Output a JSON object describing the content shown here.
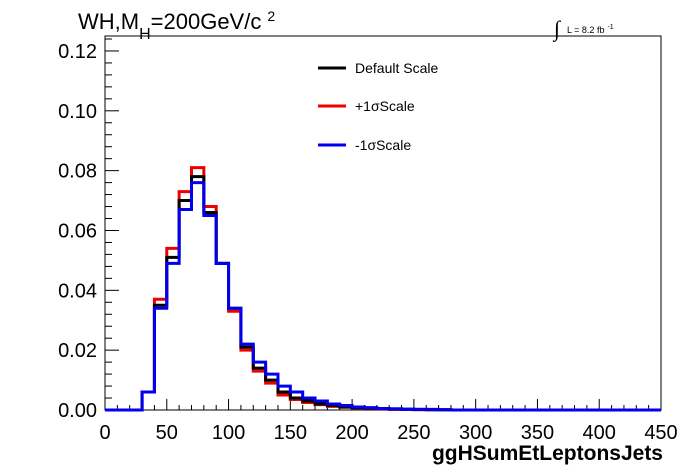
{
  "chart_data": {
    "type": "line",
    "step": true,
    "title_main": "WH,M",
    "title_sub": "H",
    "title_rest": "=200GeV/c",
    "title_sup": "2",
    "lumi_symbol": "∫",
    "lumi_label": "L = 8.2 fb",
    "lumi_sup": "-1",
    "xlabel": "ggHSumEtLeptonsJets",
    "xlim": [
      0,
      450
    ],
    "ylim": [
      0,
      0.125
    ],
    "xticks": [
      "0",
      "50",
      "100",
      "150",
      "200",
      "250",
      "300",
      "350",
      "400",
      "450"
    ],
    "yticks": [
      "0.00",
      "0.02",
      "0.04",
      "0.06",
      "0.08",
      "0.10",
      "0.12"
    ],
    "bin_edges": [
      0,
      10,
      20,
      30,
      40,
      50,
      60,
      70,
      80,
      90,
      100,
      110,
      120,
      130,
      140,
      150,
      160,
      170,
      180,
      190,
      200,
      210,
      220,
      230,
      240,
      250,
      260,
      270,
      280,
      290,
      300,
      310,
      320,
      330,
      340,
      350,
      360,
      370,
      380,
      390,
      400,
      410,
      420,
      430,
      440,
      450
    ],
    "series": [
      {
        "name": "Default Scale",
        "color": "#000000",
        "values": [
          0,
          0,
          0,
          0.006,
          0.035,
          0.051,
          0.07,
          0.078,
          0.066,
          0.049,
          0.034,
          0.021,
          0.014,
          0.01,
          0.006,
          0.004,
          0.003,
          0.002,
          0.0015,
          0.001,
          0.0008,
          0.0006,
          0.0004,
          0.0003,
          0.0002,
          0.0002,
          0.0001,
          0.0001,
          0,
          0,
          0,
          0,
          0,
          0,
          0,
          0,
          0,
          0,
          0,
          0,
          0,
          0,
          0,
          0,
          0
        ]
      },
      {
        "name": "+1σScale",
        "color": "#ee0000",
        "values": [
          0,
          0,
          0,
          0.006,
          0.037,
          0.054,
          0.073,
          0.081,
          0.068,
          0.049,
          0.033,
          0.02,
          0.013,
          0.009,
          0.005,
          0.0035,
          0.0025,
          0.0018,
          0.0012,
          0.0009,
          0.0007,
          0.0005,
          0.0003,
          0.0002,
          0.0002,
          0.0001,
          0.0001,
          0.0001,
          0,
          0,
          0,
          0,
          0,
          0,
          0,
          0,
          0,
          0,
          0,
          0,
          0,
          0,
          0,
          0,
          0
        ]
      },
      {
        "name": "-1σScale",
        "color": "#0000ee",
        "values": [
          0,
          0,
          0,
          0.006,
          0.034,
          0.049,
          0.067,
          0.076,
          0.065,
          0.049,
          0.034,
          0.022,
          0.016,
          0.012,
          0.008,
          0.006,
          0.004,
          0.003,
          0.002,
          0.0015,
          0.001,
          0.0008,
          0.0005,
          0.0004,
          0.0003,
          0.0002,
          0.0002,
          0.0001,
          0,
          0,
          0,
          0,
          0,
          0,
          0,
          0,
          0,
          0,
          0,
          0,
          0,
          0,
          0,
          0,
          0
        ]
      }
    ]
  }
}
